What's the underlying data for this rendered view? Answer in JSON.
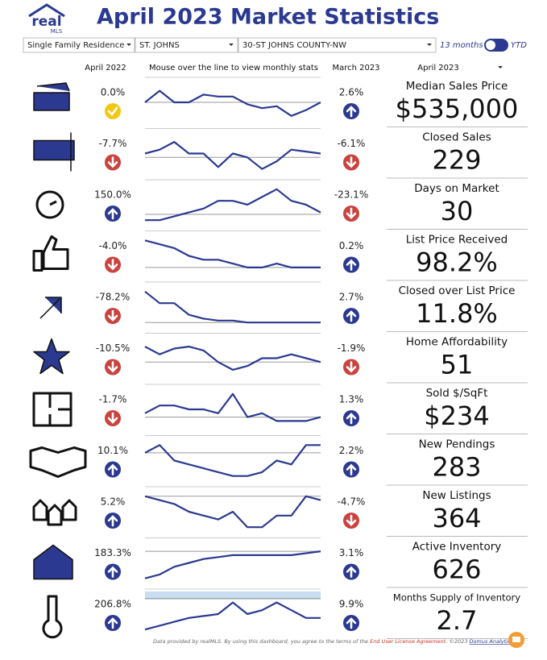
{
  "header": {
    "logo": {
      "top": "real",
      "bottom": "MLS"
    },
    "title": "April 2023 Market Statistics"
  },
  "filters": {
    "property_type": "Single Family Residence",
    "county": "ST. JOHNS",
    "area": "30-ST JOHNS COUNTY-NW",
    "period_a": "13 months",
    "period_b": "YTD"
  },
  "columns": {
    "year_ago": "April 2022",
    "trend": "Mouse over the line to view monthly stats",
    "month_ago": "March 2023",
    "current": "April 2023"
  },
  "spark_ylim": [
    0,
    10
  ],
  "rows": [
    {
      "metric": "Median Sales Price",
      "value": "$535,000",
      "yoy": "0.0%",
      "yoy_dir": "neutral",
      "mom": "2.6%",
      "mom_dir": "up",
      "baseline": 5,
      "spark": [
        5,
        8,
        5,
        5,
        7,
        6.5,
        6.5,
        4.5,
        3.5,
        4,
        1.5,
        3,
        5
      ]
    },
    {
      "metric": "Closed Sales",
      "value": "229",
      "yoy": "-7.7%",
      "yoy_dir": "down",
      "mom": "-6.1%",
      "mom_dir": "down",
      "baseline": 4,
      "spark": [
        5,
        6,
        8,
        5,
        5,
        1.5,
        5,
        4,
        1,
        3,
        6,
        5.5,
        5
      ]
    },
    {
      "metric": "Days on Market",
      "value": "30",
      "yoy": "150.0%",
      "yoy_dir": "up",
      "mom": "-23.1%",
      "mom_dir": "down",
      "baseline": 2.5,
      "spark": [
        1,
        1,
        2,
        3,
        4,
        6,
        6,
        5,
        7,
        9,
        6,
        5,
        3
      ]
    },
    {
      "metric": "List Price Received",
      "value": "98.2%",
      "yoy": "-4.0%",
      "yoy_dir": "down",
      "mom": "0.2%",
      "mom_dir": "up",
      "baseline": 2,
      "spark": [
        9,
        8,
        7,
        5,
        4,
        4,
        3,
        2,
        2,
        3,
        2,
        2,
        2
      ]
    },
    {
      "metric": "Closed over List Price",
      "value": "11.8%",
      "yoy": "-78.2%",
      "yoy_dir": "down",
      "mom": "2.7%",
      "mom_dir": "up",
      "baseline": 1,
      "spark": [
        9,
        6,
        6,
        3,
        2,
        1.5,
        1.5,
        1,
        1,
        1,
        1,
        1,
        1
      ]
    },
    {
      "metric": "Home Affordability",
      "value": "51",
      "yoy": "-10.5%",
      "yoy_dir": "down",
      "mom": "-1.9%",
      "mom_dir": "down",
      "baseline": 4,
      "spark": [
        8,
        6,
        7.5,
        8,
        7,
        4,
        2,
        3,
        5,
        5,
        6,
        5,
        4
      ]
    },
    {
      "metric": "Sold $/SqFt",
      "value": "$234",
      "yoy": "-1.7%",
      "yoy_dir": "down",
      "mom": "1.3%",
      "mom_dir": "up",
      "baseline": 3,
      "spark": [
        4,
        6,
        6,
        5,
        5,
        4,
        9,
        3,
        4,
        2,
        2,
        2,
        3
      ]
    },
    {
      "metric": "New Pendings",
      "value": "283",
      "yoy": "10.1%",
      "yoy_dir": "up",
      "mom": "2.2%",
      "mom_dir": "up",
      "baseline": 7,
      "spark": [
        7,
        9,
        5,
        4,
        3,
        2,
        1,
        1,
        2,
        5,
        4,
        9,
        9
      ]
    },
    {
      "metric": "New Listings",
      "value": "364",
      "yoy": "5.2%",
      "yoy_dir": "up",
      "mom": "-4.7%",
      "mom_dir": "down",
      "baseline": 9,
      "spark": [
        9,
        8,
        7,
        5,
        4,
        3,
        5,
        1,
        1,
        4,
        4,
        9,
        8
      ]
    },
    {
      "metric": "Active Inventory",
      "value": "626",
      "yoy": "183.3%",
      "yoy_dir": "up",
      "mom": "3.1%",
      "mom_dir": "up",
      "baseline": 8,
      "spark": [
        1,
        2,
        4,
        5,
        6,
        6.5,
        7,
        7,
        7,
        7,
        7,
        7.5,
        8
      ]
    },
    {
      "metric": "Months Supply of Inventory",
      "value": "2.7",
      "yoy": "206.8%",
      "yoy_dir": "up",
      "mom": "9.9%",
      "mom_dir": "up",
      "baseline": 9,
      "spark": [
        1,
        2,
        3,
        4,
        4.5,
        5,
        8,
        5,
        6,
        8,
        6,
        4,
        4
      ]
    }
  ],
  "footer": {
    "text": "Data provided by realMLS. By using this dashboard, you agree to the terms of the",
    "link": "End User License Agreement.",
    "copyright": "©2023",
    "brand": "Domus Analytics"
  }
}
